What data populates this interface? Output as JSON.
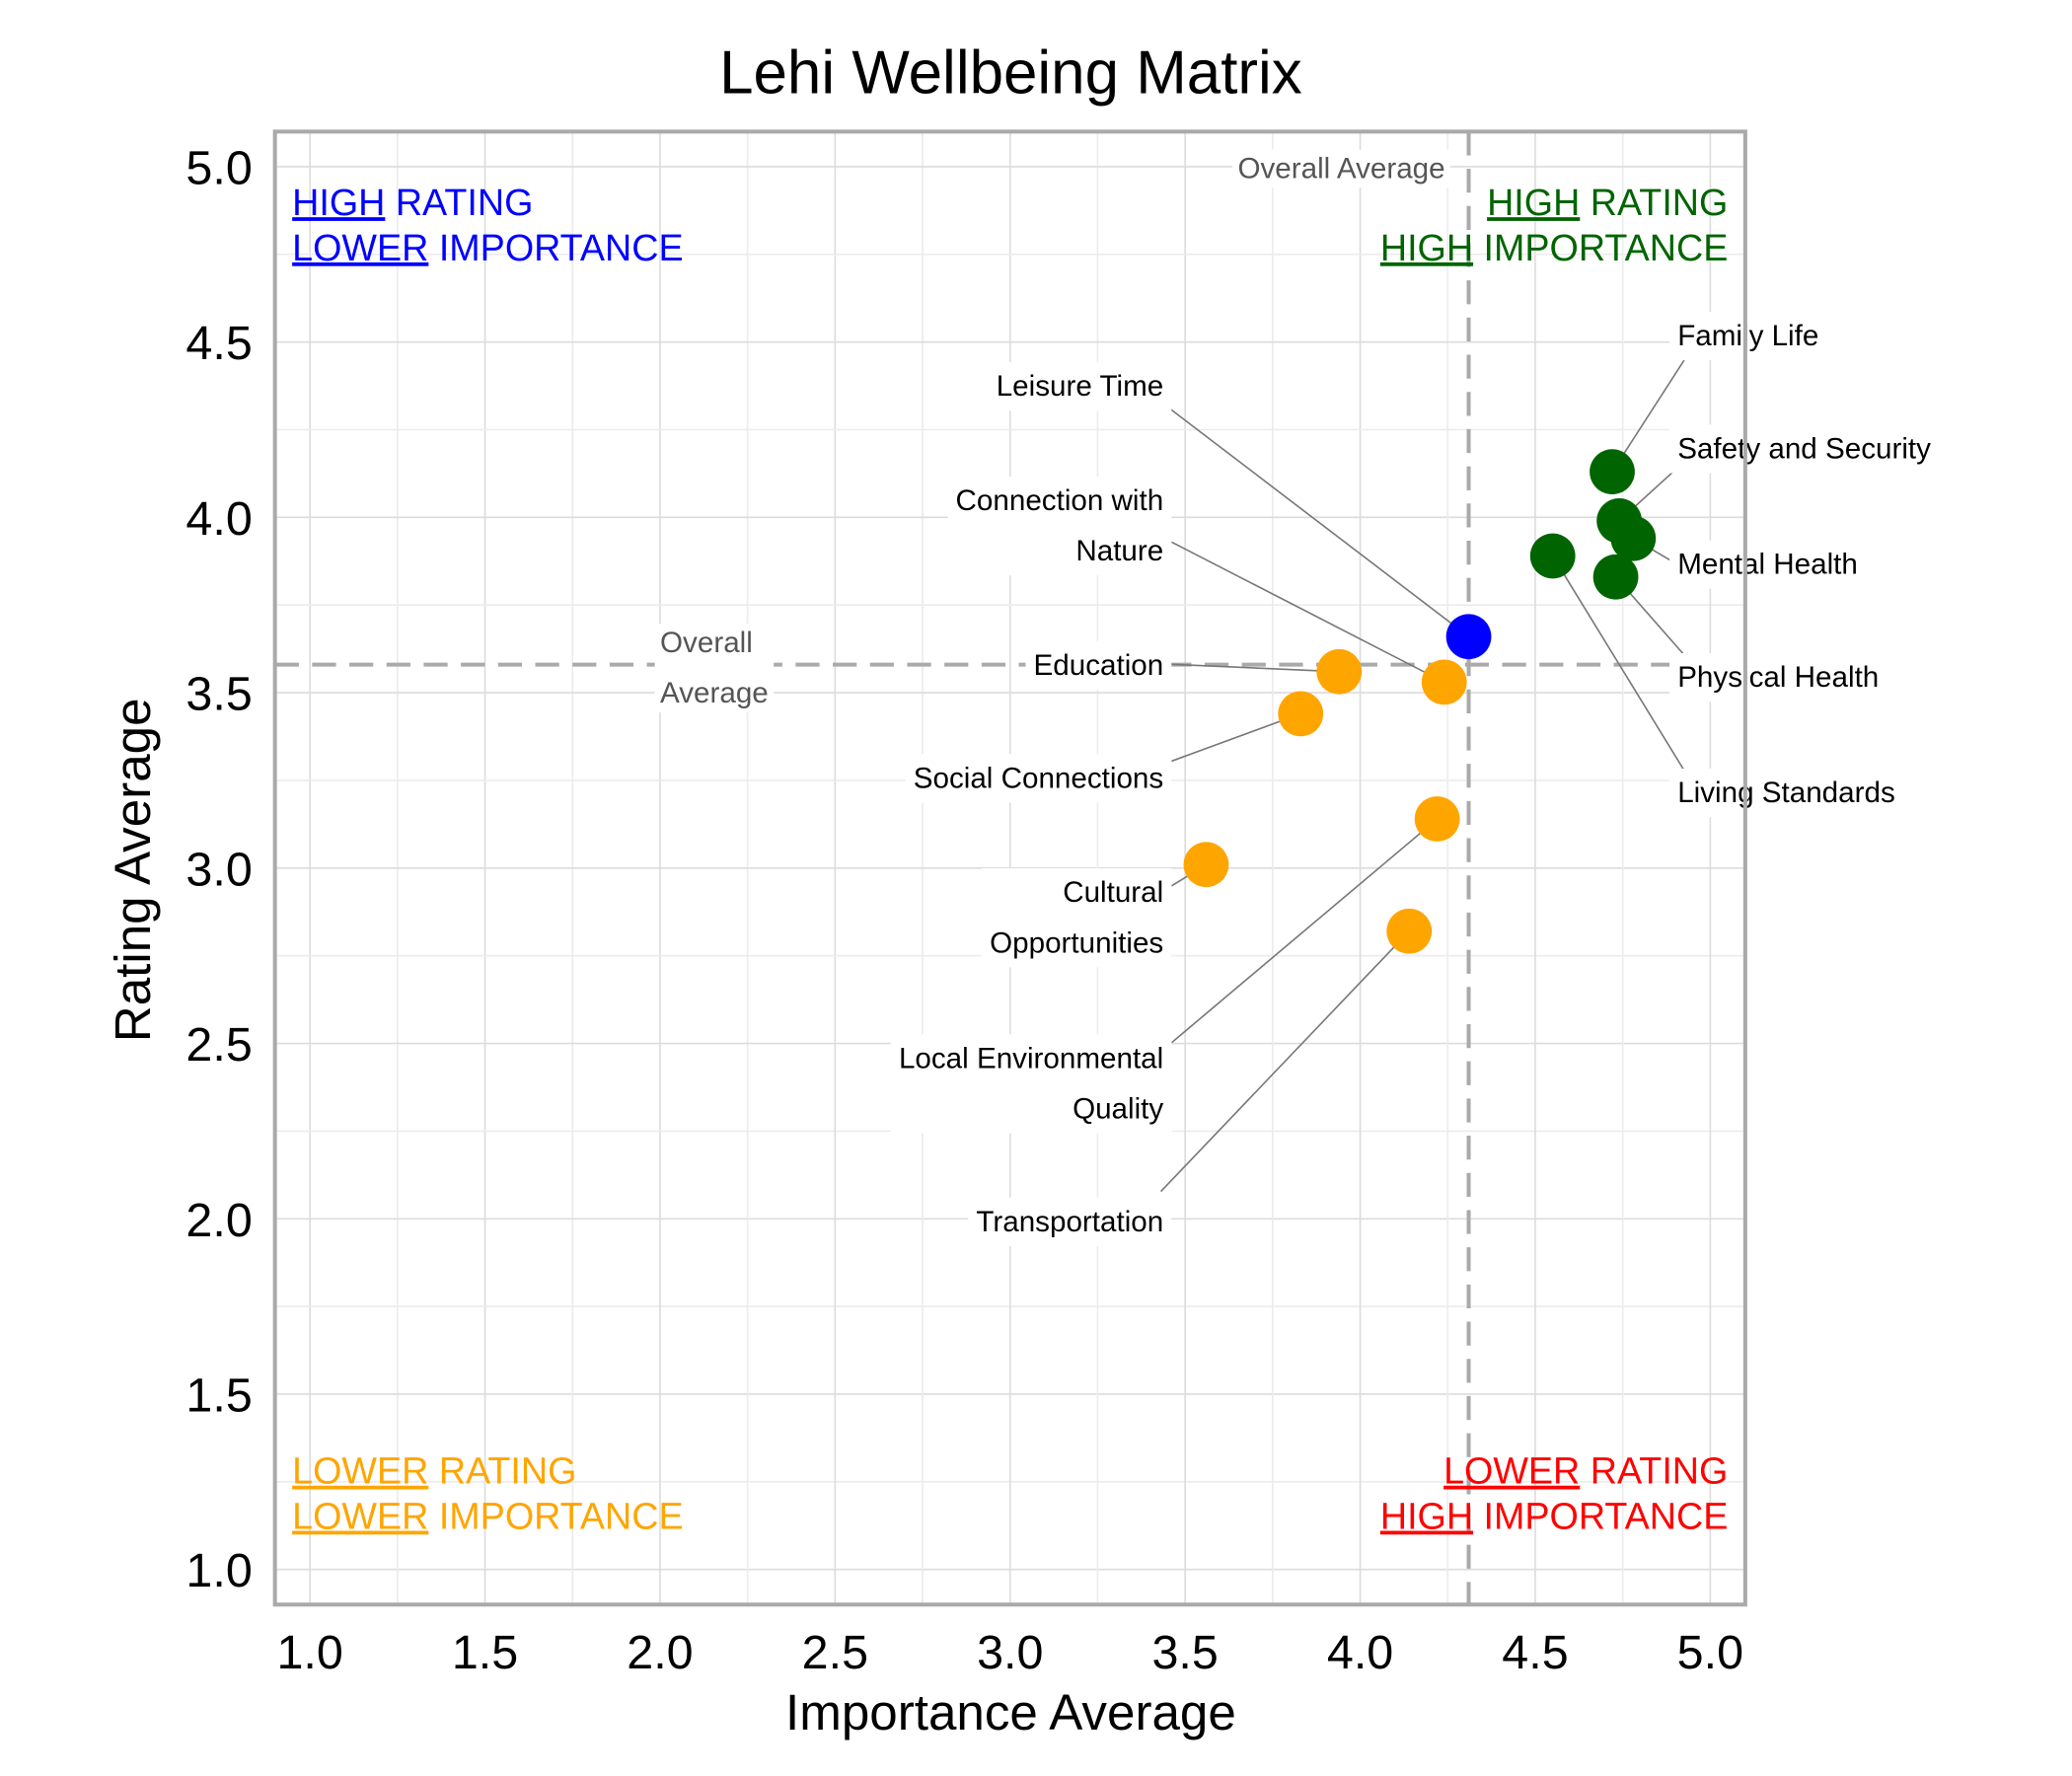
{
  "chart_data": {
    "type": "scatter",
    "title": "Lehi Wellbeing Matrix",
    "xlabel": "Importance Average",
    "ylabel": "Rating Average",
    "xlim": [
      0.9,
      5.1
    ],
    "ylim": [
      0.9,
      5.1
    ],
    "x_ticks": [
      "1.0",
      "1.5",
      "2.0",
      "2.5",
      "3.0",
      "3.5",
      "4.0",
      "4.5",
      "5.0"
    ],
    "y_ticks": [
      "1.0",
      "1.5",
      "2.0",
      "2.5",
      "3.0",
      "3.5",
      "4.0",
      "4.5",
      "5.0"
    ],
    "grid": true,
    "reference_lines": {
      "importance_average": 4.31,
      "rating_average": 3.58,
      "label_vertical": "Overall Average",
      "label_horizontal": [
        "Overall",
        "Average"
      ]
    },
    "colors": {
      "high_high": "#006400",
      "high_low": "#0000FF",
      "low_low": "#FFA500",
      "low_high": "#FF0000"
    },
    "quadrants": {
      "top_left": {
        "lines": [
          [
            "HIGH",
            " RATING"
          ],
          [
            "LOWER",
            " IMPORTANCE"
          ]
        ],
        "color": "#0000FF"
      },
      "top_right": {
        "lines": [
          [
            "HIGH",
            " RATING"
          ],
          [
            "HIGH",
            " IMPORTANCE"
          ]
        ],
        "color": "#006400"
      },
      "bottom_left": {
        "lines": [
          [
            "LOWER",
            " RATING"
          ],
          [
            "LOWER",
            " IMPORTANCE"
          ]
        ],
        "color": "#FFA500"
      },
      "bottom_right": {
        "lines": [
          [
            "LOWER",
            " RATING"
          ],
          [
            "HIGH",
            " IMPORTANCE"
          ]
        ],
        "color": "#FF0000"
      }
    },
    "points": [
      {
        "name": [
          "Family Life"
        ],
        "x": 4.72,
        "y": 4.13,
        "group": "high_high"
      },
      {
        "name": [
          "Safety and Security"
        ],
        "x": 4.74,
        "y": 3.99,
        "group": "high_high"
      },
      {
        "name": [
          "Mental Health"
        ],
        "x": 4.78,
        "y": 3.94,
        "group": "high_high"
      },
      {
        "name": [
          "Physical Health"
        ],
        "x": 4.73,
        "y": 3.83,
        "group": "high_high"
      },
      {
        "name": [
          "Living Standards"
        ],
        "x": 4.55,
        "y": 3.89,
        "group": "high_high"
      },
      {
        "name": [
          "Leisure Time"
        ],
        "x": 4.31,
        "y": 3.66,
        "group": "high_low"
      },
      {
        "name": [
          "Connection with",
          "Nature"
        ],
        "x": 4.24,
        "y": 3.53,
        "group": "low_low"
      },
      {
        "name": [
          "Education"
        ],
        "x": 3.94,
        "y": 3.56,
        "group": "low_low"
      },
      {
        "name": [
          "Social Connections"
        ],
        "x": 3.83,
        "y": 3.44,
        "group": "low_low"
      },
      {
        "name": [
          "Local Environmental",
          "Quality"
        ],
        "x": 4.22,
        "y": 3.14,
        "group": "low_low"
      },
      {
        "name": [
          "Cultural",
          "Opportunities"
        ],
        "x": 3.56,
        "y": 3.01,
        "group": "low_low"
      },
      {
        "name": [
          "Transportation"
        ],
        "x": 4.14,
        "y": 2.82,
        "group": "low_low"
      }
    ]
  }
}
